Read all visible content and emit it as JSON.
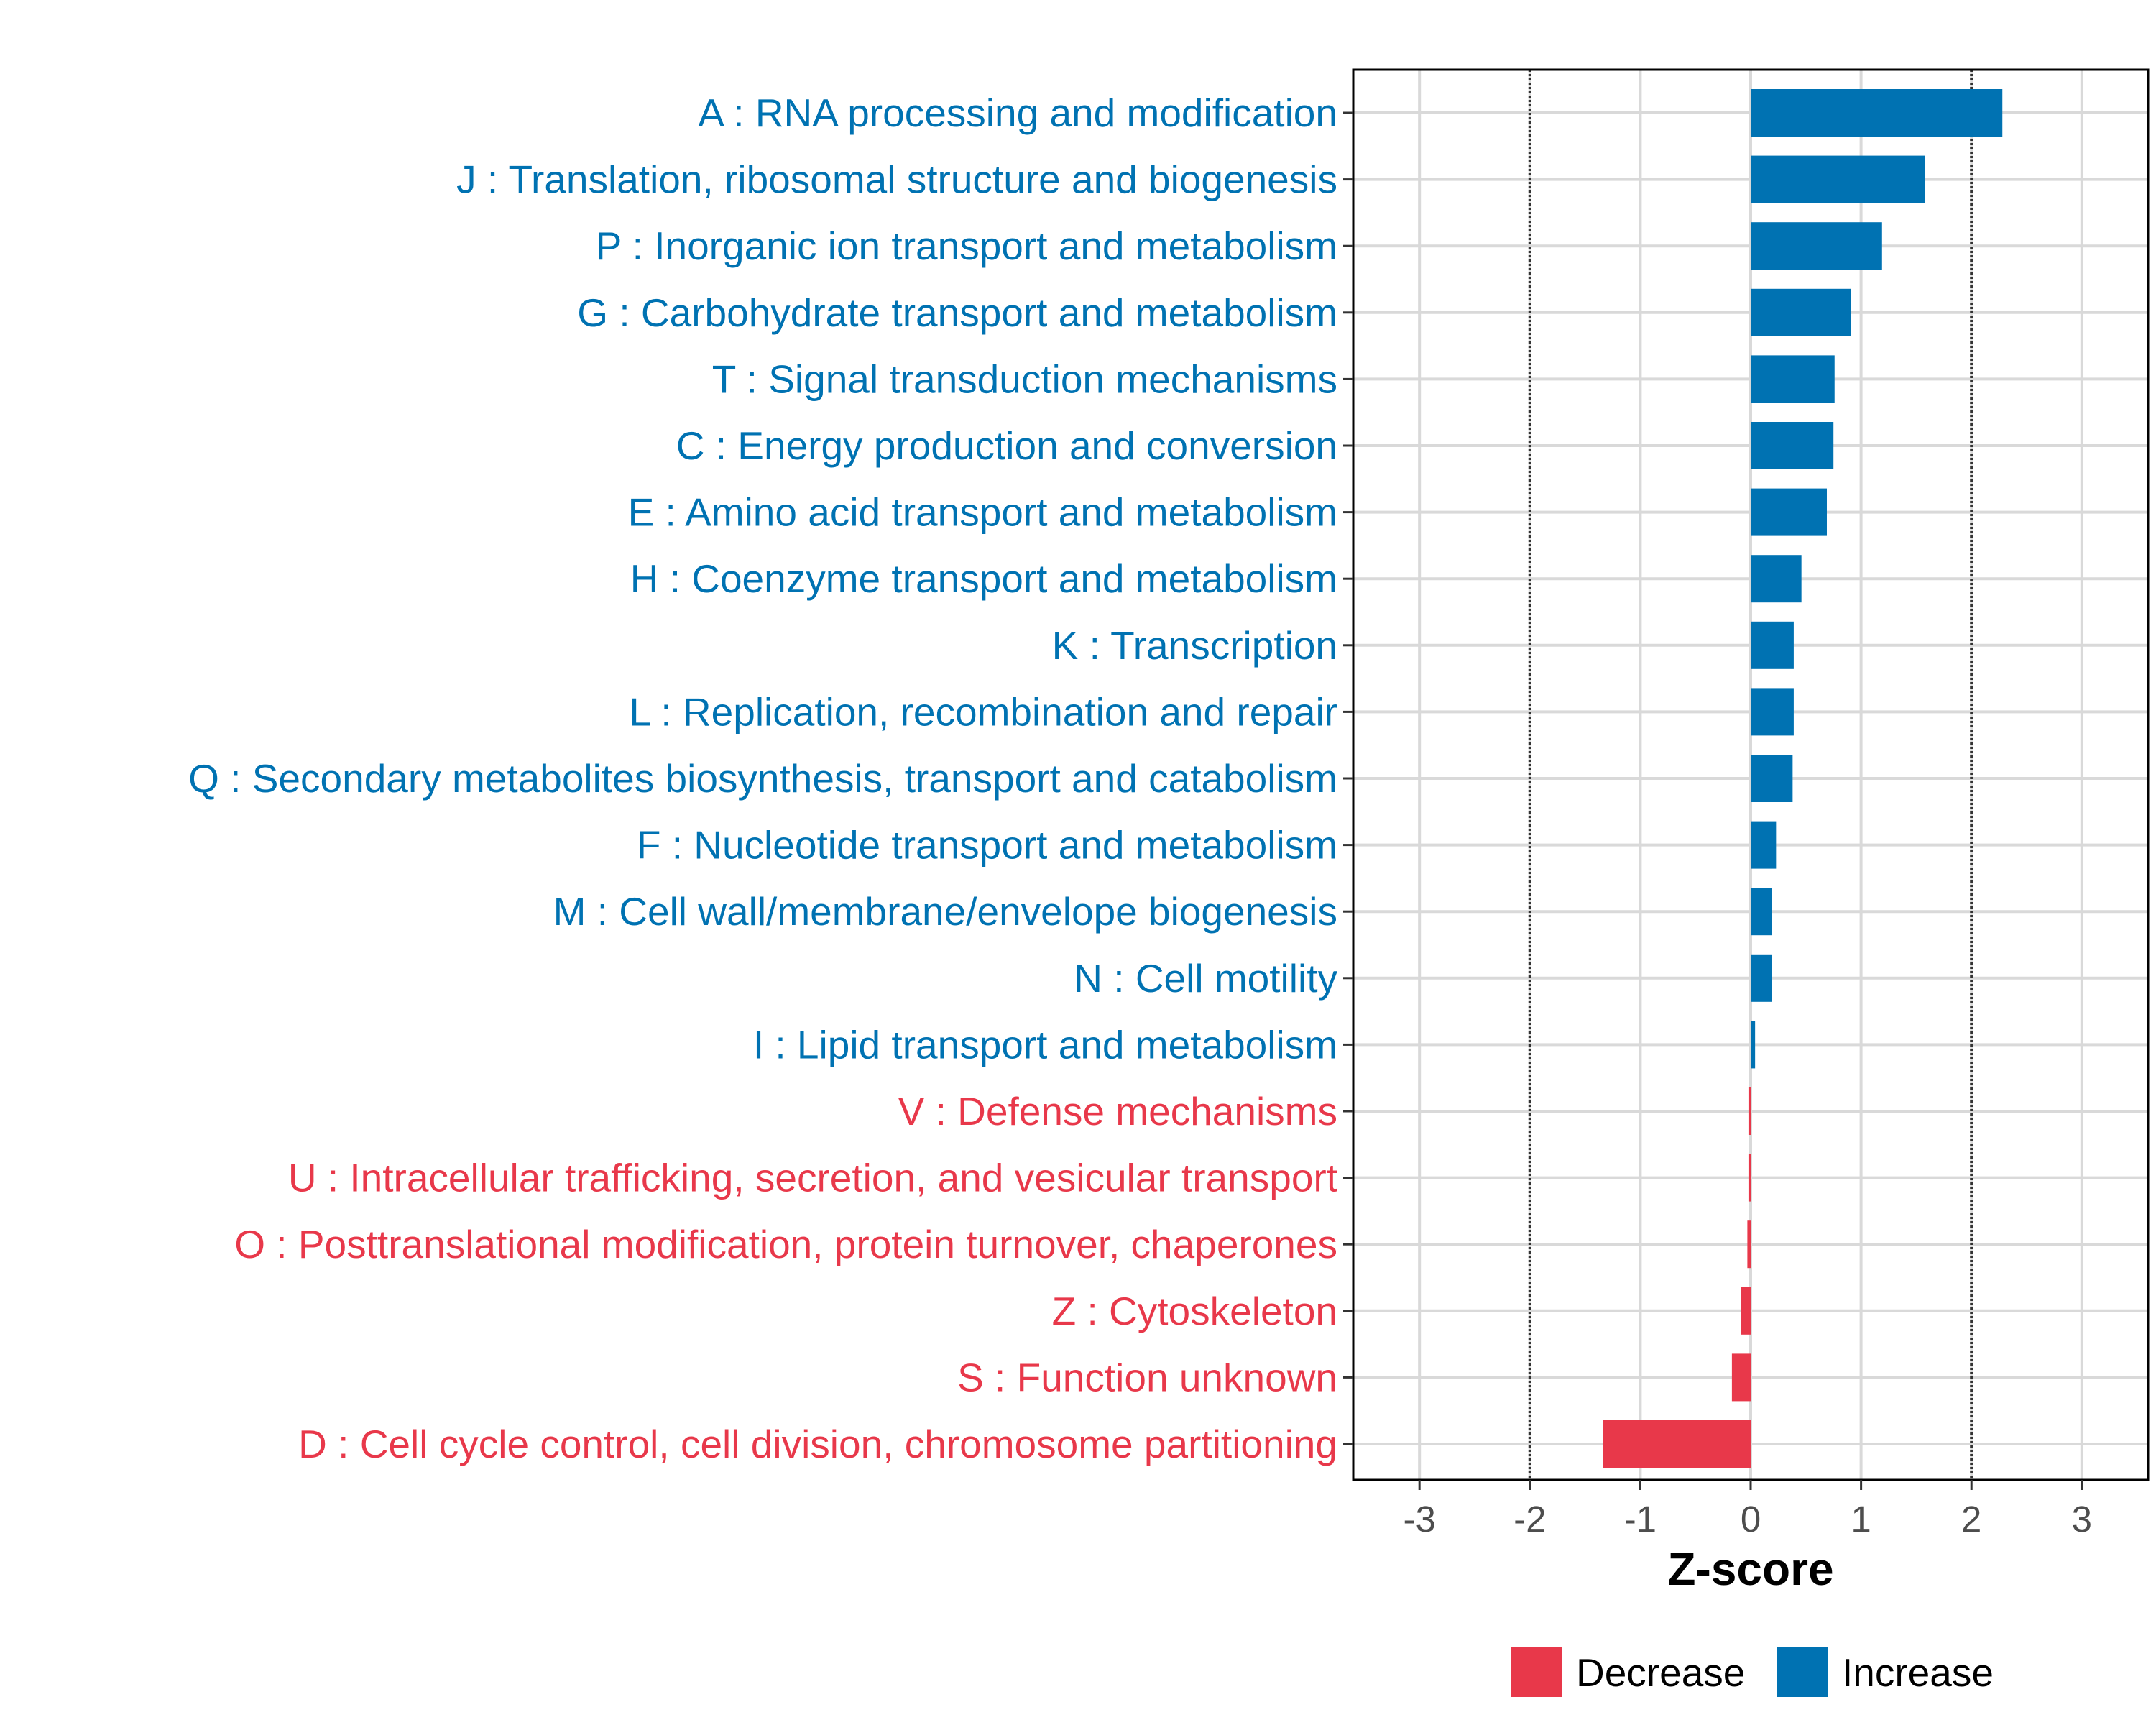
{
  "chart_data": {
    "type": "bar",
    "orientation": "horizontal",
    "xlabel": "Z-score",
    "ylabel": "",
    "xlim": [
      -3.6,
      3.6
    ],
    "xticks": [
      -3,
      -2,
      -1,
      0,
      1,
      2,
      3
    ],
    "xtick_labels": [
      "-3",
      "-2",
      "-1",
      "0",
      "1",
      "2",
      "3"
    ],
    "reference_lines": [
      -2,
      2
    ],
    "grid": true,
    "legend_position": "bottom",
    "legend": [
      {
        "label": "Decrease",
        "color": "#e8384a"
      },
      {
        "label": "Increase",
        "color": "#0072b2"
      }
    ],
    "categories": [
      "A : RNA processing and modification",
      "J : Translation, ribosomal structure and biogenesis",
      "P : Inorganic ion transport and metabolism",
      "G : Carbohydrate transport and metabolism",
      "T : Signal transduction mechanisms",
      "C : Energy production and conversion",
      "E : Amino acid transport and metabolism",
      "H : Coenzyme transport and metabolism",
      "K : Transcription",
      "L : Replication, recombination and repair",
      "Q : Secondary metabolites biosynthesis, transport and catabolism",
      "F : Nucleotide transport and metabolism",
      "M : Cell wall/membrane/envelope biogenesis",
      "N : Cell motility",
      "I : Lipid transport and metabolism",
      "V : Defense mechanisms",
      "U : Intracellular trafficking, secretion, and vesicular transport",
      "O : Posttranslational modification, protein turnover, chaperones",
      "Z : Cytoskeleton",
      "S : Function unknown",
      "D : Cell cycle control, cell division, chromosome partitioning"
    ],
    "values": [
      2.28,
      1.58,
      1.19,
      0.91,
      0.76,
      0.75,
      0.69,
      0.46,
      0.39,
      0.39,
      0.38,
      0.23,
      0.19,
      0.19,
      0.04,
      -0.02,
      -0.02,
      -0.03,
      -0.09,
      -0.17,
      -1.34
    ]
  }
}
